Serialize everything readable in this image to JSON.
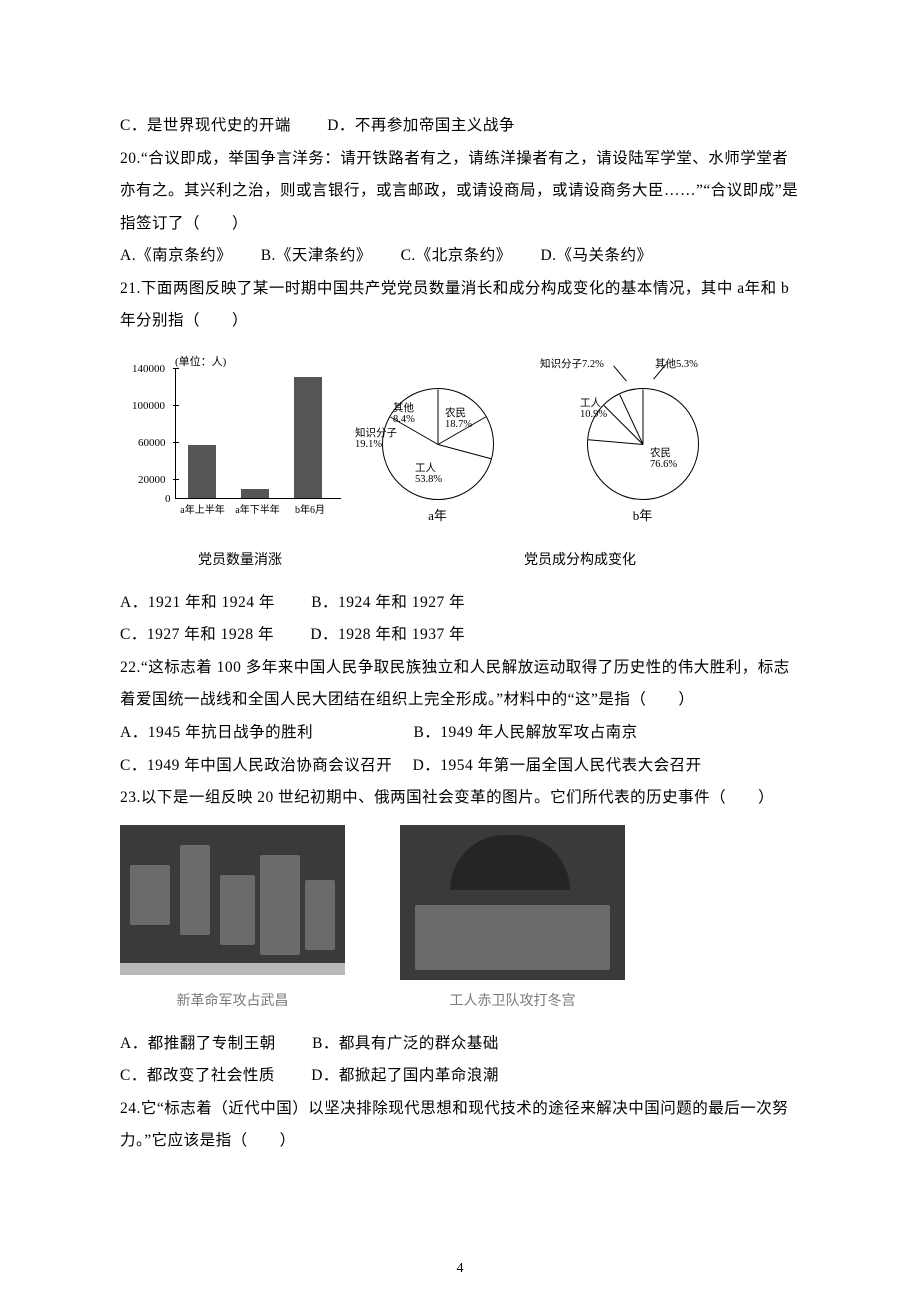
{
  "q19": {
    "c": "C．是世界现代史的开端",
    "d": "D．不再参加帝国主义战争"
  },
  "q20": {
    "stem": "20.“合议即成，举国争言洋务：请开铁路者有之，请练洋操者有之，请设陆军学堂、水师学堂者亦有之。其兴利之治，则或言银行，或言邮政，或请设商局，或请设商务大臣……”“合议即成”是指签订了（　　）",
    "a": "A.《南京条约》",
    "b": "B.《天津条约》",
    "c": "C.《北京条约》",
    "d": "D.《马关条约》"
  },
  "q21": {
    "stem": "21.下面两图反映了某一时期中国共产党党员数量消长和成分构成变化的基本情况，其中 a年和 b 年分别指（　　）",
    "a": "A．1921 年和 1924 年",
    "b": "B．1924 年和 1927 年",
    "c": "C．1927 年和 1928 年",
    "d": "D．1928 年和 1937 年"
  },
  "barChart": {
    "unitLabel": "(单位：人)",
    "ylabels": [
      "140000",
      "100000",
      "60000",
      "20000",
      "0"
    ],
    "xlabels": [
      "a年上半年",
      "a年下半年",
      "b年6月"
    ],
    "values": [
      57000,
      10000,
      130000
    ],
    "ymax": 140000,
    "caption": "党员数量消涨"
  },
  "pieA": {
    "labels": {
      "other": "其他\n8.4%",
      "intellectual": "知识分子\n19.1%",
      "worker": "工人\n53.8%",
      "peasant": "农民\n18.7%"
    },
    "caption": "a年"
  },
  "pieB": {
    "labels": {
      "intellectual": "知识分子7.2%",
      "other": "其他5.3%",
      "worker": "工人\n10.9%",
      "peasant": "农民\n76.6%"
    },
    "caption": "b年"
  },
  "pieGroupCaption": "党员成分构成变化",
  "q22": {
    "stem": "22.“这标志着 100 多年来中国人民争取民族独立和人民解放运动取得了历史性的伟大胜利，标志着爱国统一战线和全国人民大团结在组织上完全形成。”材料中的“这”是指（　　）",
    "a": "A．1945 年抗日战争的胜利",
    "b": "B．1949 年人民解放军攻占南京",
    "c": "C．1949 年中国人民政治协商会议召开",
    "d": "D．1954 年第一届全国人民代表大会召开"
  },
  "q23": {
    "stem": "23.以下是一组反映 20 世纪初期中、俄两国社会变革的图片。它们所代表的历史事件（　　）",
    "a": "A．都推翻了专制王朝",
    "b": "B．都具有广泛的群众基础",
    "c": "C．都改变了社会性质",
    "d": "D．都掀起了国内革命浪潮"
  },
  "photoCaps": {
    "left": "新革命军攻占武昌",
    "right": "工人赤卫队攻打冬宫"
  },
  "q24": {
    "stem": "24.它“标志着（近代中国）以坚决排除现代思想和现代技术的途径来解决中国问题的最后一次努力。”它应该是指（　　）"
  },
  "pageNum": "4"
}
